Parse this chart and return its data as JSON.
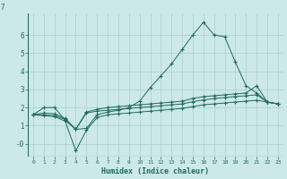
{
  "xlabel": "Humidex (Indice chaleur)",
  "background_color": "#cce8e8",
  "line_color": "#1e6b5e",
  "grid_color": "#aacfcf",
  "xlim": [
    -0.5,
    23.5
  ],
  "ylim": [
    -0.7,
    7.2
  ],
  "xticks": [
    0,
    1,
    2,
    3,
    4,
    5,
    6,
    7,
    8,
    9,
    10,
    11,
    12,
    13,
    14,
    15,
    16,
    17,
    18,
    19,
    20,
    21,
    22,
    23
  ],
  "yticks": [
    0,
    1,
    2,
    3,
    4,
    5,
    6
  ],
  "ytick_labels": [
    "-0",
    "1",
    "2",
    "3",
    "4",
    "5",
    "6"
  ],
  "series": [
    [
      1.6,
      2.0,
      2.0,
      1.3,
      0.8,
      0.85,
      1.6,
      1.75,
      1.85,
      2.0,
      2.35,
      3.1,
      3.75,
      4.4,
      5.2,
      6.0,
      6.7,
      6.0,
      5.9,
      4.5,
      3.2,
      2.8,
      2.3,
      2.2
    ],
    [
      1.6,
      1.7,
      1.65,
      1.4,
      0.8,
      1.75,
      1.9,
      2.0,
      2.05,
      2.1,
      2.15,
      2.2,
      2.25,
      2.3,
      2.35,
      2.5,
      2.6,
      2.65,
      2.7,
      2.75,
      2.8,
      3.2,
      2.3,
      2.2
    ],
    [
      1.6,
      1.6,
      1.55,
      1.35,
      0.8,
      1.7,
      1.8,
      1.85,
      1.9,
      1.95,
      2.0,
      2.05,
      2.1,
      2.15,
      2.2,
      2.32,
      2.42,
      2.5,
      2.55,
      2.6,
      2.65,
      2.7,
      2.3,
      2.2
    ],
    [
      1.6,
      1.55,
      1.5,
      1.25,
      -0.38,
      0.75,
      1.45,
      1.6,
      1.65,
      1.7,
      1.75,
      1.8,
      1.85,
      1.9,
      1.95,
      2.05,
      2.15,
      2.2,
      2.25,
      2.3,
      2.35,
      2.4,
      2.3,
      2.2
    ]
  ]
}
